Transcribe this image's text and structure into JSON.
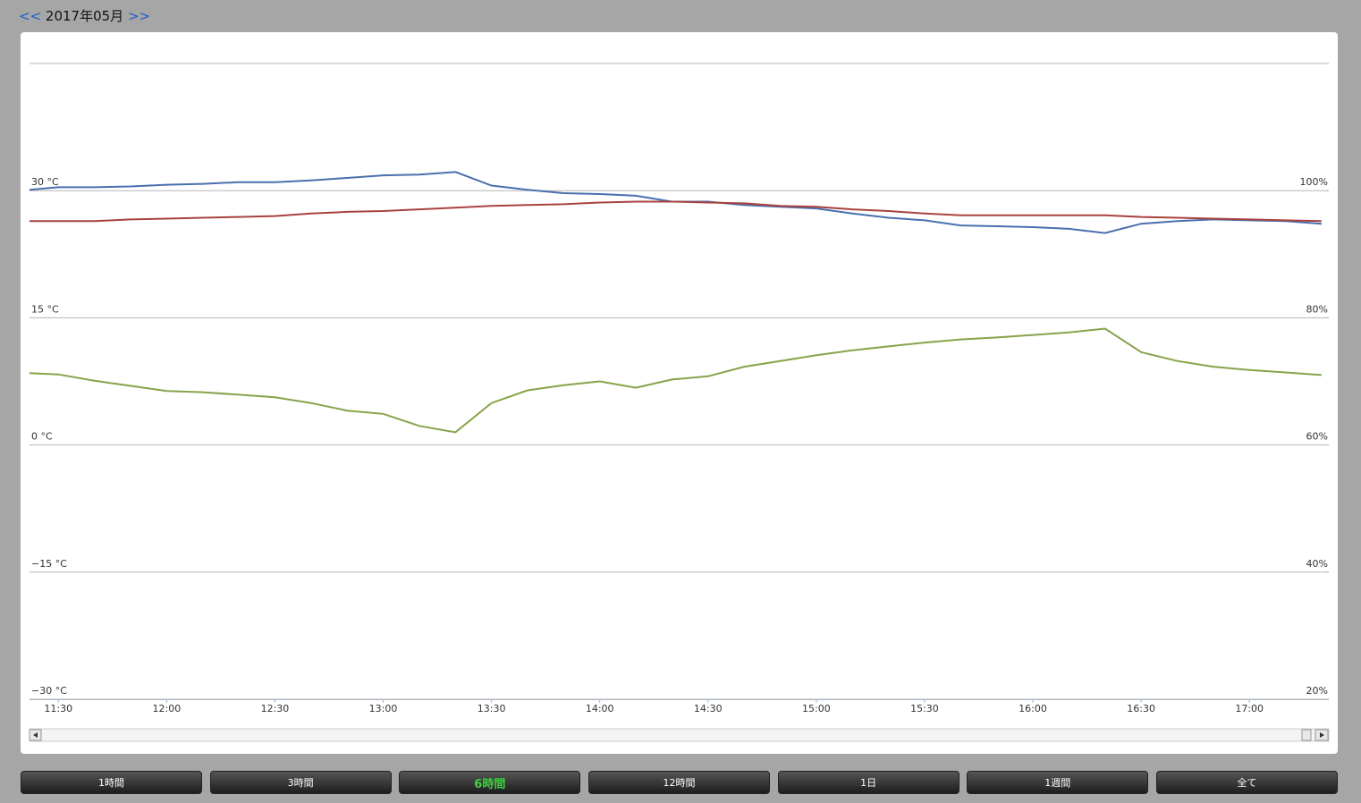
{
  "nav": {
    "prev": "<<",
    "month": "2017年05月",
    "next": ">>"
  },
  "chart_data": {
    "type": "line",
    "x": [
      "11:22",
      "11:30",
      "11:40",
      "11:50",
      "12:00",
      "12:10",
      "12:20",
      "12:30",
      "12:40",
      "12:50",
      "13:00",
      "13:10",
      "13:20",
      "13:30",
      "13:40",
      "13:50",
      "14:00",
      "14:10",
      "14:20",
      "14:30",
      "14:40",
      "14:50",
      "15:00",
      "15:10",
      "15:20",
      "15:30",
      "15:40",
      "15:50",
      "16:00",
      "16:10",
      "16:20",
      "16:30",
      "16:40",
      "16:50",
      "17:00",
      "17:10",
      "17:20"
    ],
    "xlim": [
      "11:22",
      "17:22"
    ],
    "xticks": [
      "11:30",
      "12:00",
      "12:30",
      "13:00",
      "13:30",
      "14:00",
      "14:30",
      "15:00",
      "15:30",
      "16:00",
      "16:30",
      "17:00"
    ],
    "ylim": [
      -30,
      45
    ],
    "yticks": [
      {
        "value": -30,
        "label": "−30 °C"
      },
      {
        "value": -15,
        "label": "−15 °C"
      },
      {
        "value": 0,
        "label": "0 °C"
      },
      {
        "value": 15,
        "label": "15 °C"
      },
      {
        "value": 30,
        "label": "30 °C"
      }
    ],
    "y2lim": [
      20,
      120
    ],
    "y2ticks": [
      {
        "value": 20,
        "label": "20%"
      },
      {
        "value": 40,
        "label": "40%"
      },
      {
        "value": 60,
        "label": "60%"
      },
      {
        "value": 80,
        "label": "80%"
      },
      {
        "value": 100,
        "label": "100%"
      }
    ],
    "grid": true,
    "series": [
      {
        "color": "#4a6fae",
        "values": [
          30.1,
          30.4,
          30.4,
          30.5,
          30.7,
          30.8,
          31.0,
          31.0,
          31.2,
          31.5,
          31.8,
          31.9,
          32.2,
          30.6,
          30.1,
          29.7,
          29.6,
          29.4,
          28.7,
          28.7,
          28.3,
          28.1,
          27.9,
          27.3,
          26.8,
          26.5,
          25.9,
          25.8,
          25.7,
          25.5,
          25.0,
          26.1,
          26.4,
          26.6,
          26.5,
          26.4,
          26.1
        ]
      },
      {
        "color": "#a9423f",
        "values": [
          26.4,
          26.4,
          26.4,
          26.6,
          26.7,
          26.8,
          26.9,
          27.0,
          27.3,
          27.5,
          27.6,
          27.8,
          28.0,
          28.2,
          28.3,
          28.4,
          28.6,
          28.7,
          28.7,
          28.6,
          28.5,
          28.2,
          28.1,
          27.8,
          27.6,
          27.3,
          27.1,
          27.1,
          27.1,
          27.1,
          27.1,
          26.9,
          26.8,
          26.7,
          26.6,
          26.5,
          26.4
        ]
      },
      {
        "color": "#86a34a",
        "axis": "y2",
        "values": [
          71.3,
          71.1,
          70.1,
          69.3,
          68.5,
          68.3,
          67.9,
          67.5,
          66.6,
          65.4,
          64.9,
          63.0,
          62.0,
          66.6,
          68.6,
          69.4,
          70.0,
          69.0,
          70.3,
          70.8,
          72.3,
          73.2,
          74.1,
          74.9,
          75.5,
          76.1,
          76.6,
          76.9,
          77.3,
          77.7,
          78.3,
          74.6,
          73.2,
          72.3,
          71.8,
          71.4,
          71.0
        ]
      }
    ]
  },
  "buttons": [
    "1時間",
    "3時間",
    "6時間",
    "12時間",
    "1日",
    "1週間",
    "全て"
  ],
  "active_button": 2
}
